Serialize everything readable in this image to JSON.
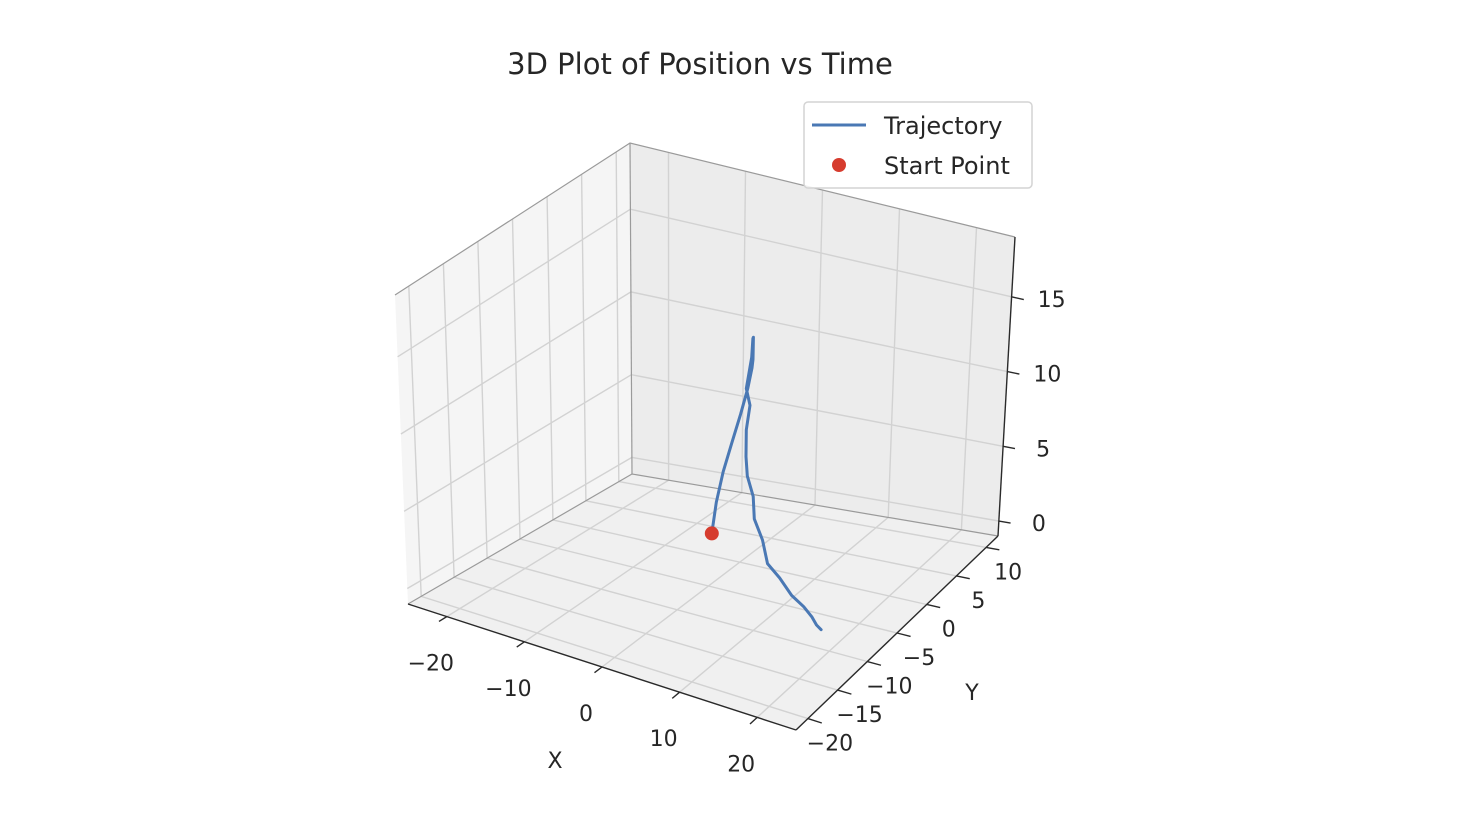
{
  "chart_data": {
    "type": "line3d",
    "title": "3D Plot of Position vs Time",
    "xlabel": "X",
    "ylabel": "Y",
    "zlabel": "",
    "xlim": [
      -25,
      25
    ],
    "ylim": [
      -22,
      12
    ],
    "zlim": [
      -1,
      19
    ],
    "x_ticks": [
      "−20",
      "−10",
      "0",
      "10",
      "20"
    ],
    "y_ticks": [
      "−20",
      "−15",
      "−10",
      "−5",
      "0",
      "5",
      "10"
    ],
    "z_ticks": [
      "0",
      "5",
      "10",
      "15"
    ],
    "grid": true,
    "legend": {
      "placement": "top-right",
      "entries": [
        "Trajectory",
        "Start Point"
      ]
    },
    "colors": {
      "trajectory": "#4a78b4",
      "start_point": "#d63c2e",
      "pane_left": "#f5f5f5",
      "pane_right": "#ececec",
      "pane_floor": "#f0f0f0",
      "grid": "#d2d2d2"
    },
    "series": [
      {
        "name": "Trajectory",
        "x": [
          -2.5,
          -2.0,
          -1.2,
          0.0,
          1.2,
          2.2,
          2.8,
          3.0,
          3.1,
          3.2,
          3.3,
          3.0,
          2.5,
          3.0,
          2.8,
          3.2,
          3.8,
          5.0,
          6.0,
          7.5,
          9.0,
          11.0,
          13.0,
          15.0,
          16.5,
          17.5,
          18.5
        ],
        "y": [
          -1.5,
          -1.4,
          -1.3,
          -1.4,
          -1.5,
          -1.6,
          -1.7,
          -1.8,
          -1.9,
          -2.0,
          -2.2,
          -2.0,
          -2.2,
          -2.2,
          -2.5,
          -3.0,
          -3.5,
          -4.0,
          -5.0,
          -5.5,
          -6.5,
          -7.0,
          -7.5,
          -8.0,
          -8.5,
          -9.0,
          -9.5
        ],
        "z": [
          1.0,
          3.0,
          5.0,
          7.0,
          9.0,
          10.8,
          12.2,
          12.8,
          13.5,
          14.3,
          14.3,
          13.0,
          11.0,
          10.0,
          8.5,
          7.0,
          6.0,
          5.0,
          4.0,
          3.0,
          2.0,
          1.5,
          0.8,
          0.5,
          0.2,
          0.0,
          0.0
        ]
      },
      {
        "name": "Start Point",
        "x": [
          -2.5
        ],
        "y": [
          -1.5
        ],
        "z": [
          1.0
        ]
      }
    ]
  }
}
